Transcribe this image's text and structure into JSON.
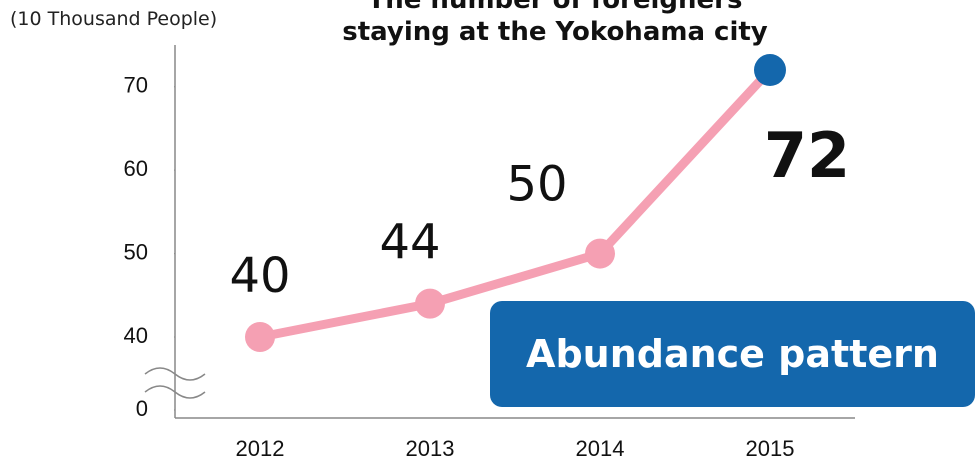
{
  "chart_data": {
    "type": "line",
    "title": "The number of foreigners staying at the Yokohama city",
    "y_axis_label": "(10 Thousand People)",
    "annotation": "Abundance pattern",
    "categories": [
      "2012",
      "2013",
      "2014",
      "2015"
    ],
    "series": [
      {
        "name": "Foreigners",
        "color": "#f5a0b3",
        "highlight_color": "#1467ac",
        "values": [
          40,
          44,
          50,
          72
        ]
      }
    ],
    "ylim": [
      0,
      75
    ],
    "yticks": [
      0,
      40,
      50,
      60,
      70
    ],
    "axis_break": true
  }
}
